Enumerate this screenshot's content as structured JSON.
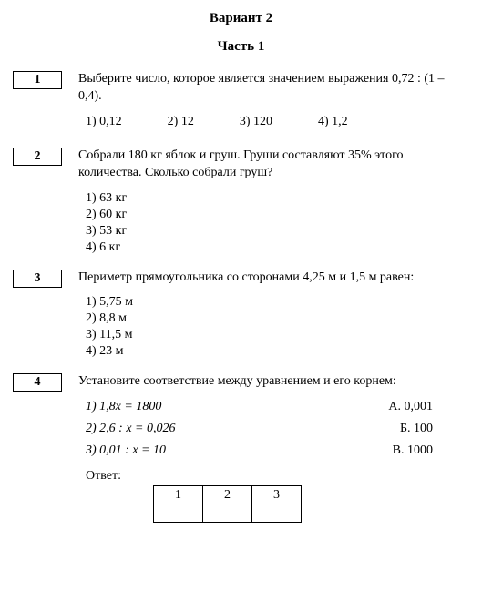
{
  "header": {
    "variant": "Вариант 2",
    "part": "Часть 1"
  },
  "questions": [
    {
      "num": "1",
      "text": "Выберите число, которое является значением выражения 0,72 : (1 – 0,4).",
      "options_layout": "row",
      "options": [
        {
          "label": "1) 0,12"
        },
        {
          "label": "2) 12"
        },
        {
          "label": "3) 120"
        },
        {
          "label": "4) 1,2"
        }
      ]
    },
    {
      "num": "2",
      "text": "Собрали 180 кг яблок и груш. Груши составляют 35% этого количества. Сколько собрали груш?",
      "options_layout": "col",
      "options": [
        {
          "label": "1) 63 кг"
        },
        {
          "label": "2) 60 кг"
        },
        {
          "label": "3) 53 кг"
        },
        {
          "label": "4) 6 кг"
        }
      ]
    },
    {
      "num": "3",
      "text": "Периметр прямоугольника со сторонами 4,25 м и 1,5 м равен:",
      "options_layout": "col",
      "options": [
        {
          "label": "1) 5,75 м"
        },
        {
          "label": "2) 8,8 м"
        },
        {
          "label": "3) 11,5 м"
        },
        {
          "label": "4) 23 м"
        }
      ]
    },
    {
      "num": "4",
      "text": "Установите соответствие между уравнением и его корнем:",
      "options_layout": "match",
      "match_left": [
        "1) 1,8x = 1800",
        "2) 2,6 : x = 0,026",
        "3) 0,01 : x = 10"
      ],
      "match_right": [
        "А. 0,001",
        "Б. 100",
        "В. 1000"
      ],
      "answer_label": "Ответ:",
      "answer_cells": [
        "1",
        "2",
        "3"
      ]
    }
  ]
}
